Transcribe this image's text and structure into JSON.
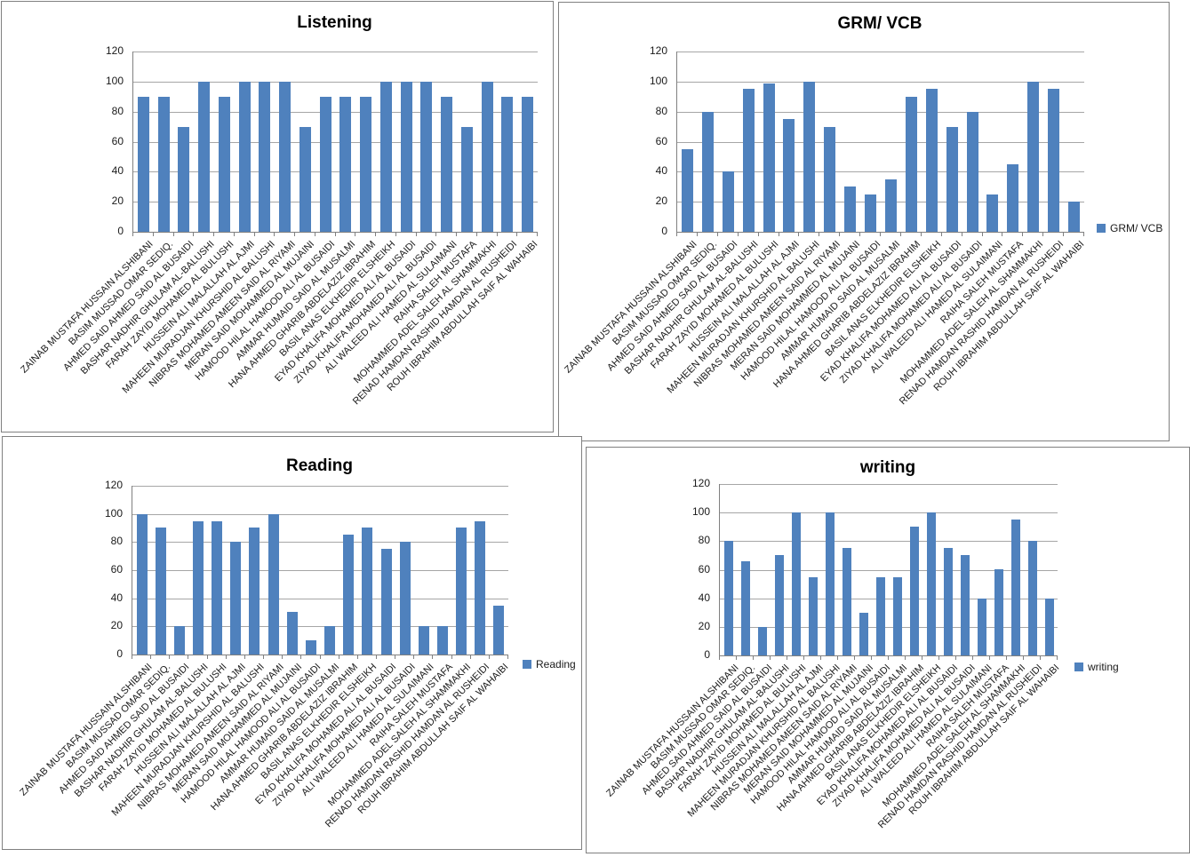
{
  "page": {
    "background": "#FFFFFF",
    "panel_border_color": "#808080"
  },
  "colors": {
    "bar": "#4F81BD",
    "gridline": "#A6A6A6",
    "axis": "#808080",
    "text": "#1A1A1A",
    "title": "#000000"
  },
  "chart_data": [
    {
      "type": "bar",
      "title": "Listening",
      "legend": null,
      "legend_position": null,
      "grid": true,
      "ylim": [
        0,
        120
      ],
      "yticks": [
        0,
        20,
        40,
        60,
        80,
        100,
        120
      ],
      "categories": [
        "ZAINAB MUSTAFA HUSSAIN ALSHIBANI",
        "BASIM MUSSAD OMAR SEDIQ.",
        "AHMED SAID AHMED SAID AL BUSAIDI",
        "BASHAR NADHIR GHULAM AL-BALUSHI",
        "FARAH ZAYID MOHAMED AL BULUSHI",
        "HUSSEIN ALI MALALLAH AL AJMI",
        "MAHEEN MURADJAN KHURSHID AL BALUSHI",
        "NIBRAS MOHAMED AMEEN SAID AL RIYAMI",
        "MERAN SAID MOHAMMED AL MUJAINI",
        "HAMOOD HILAL HAMOOD ALI AL BUSAIDI",
        "AMMAR HUMAID SAID AL MUSALMI",
        "HANA AHMED GHARIB ABDELAZIZ IBRAHIM",
        "BASIL ANAS ELKHEDIR ELSHEIKH",
        "EYAD KHALIFA MOHAMED ALI AL BUSAIDI",
        "ZIYAD KHALIFA MOHAMED ALI AL BUSAIDI",
        "ALI WALEED ALI HAMED AL SULAIMANI",
        "RAIHA SALEH MUSTAFA",
        "MOHAMMED ADEL SALEH AL SHAMMAKHI",
        "RENAD HAMDAN RASHID HAMDAN AL RUSHEIDI",
        "ROUH IBRAHIM ABDULLAH SAIF AL WAHAIBI"
      ],
      "series": [
        {
          "name": "Listening",
          "values": [
            90,
            90,
            70,
            100,
            90,
            100,
            100,
            100,
            70,
            90,
            90,
            90,
            100,
            100,
            100,
            90,
            70,
            100,
            90,
            90
          ]
        }
      ]
    },
    {
      "type": "bar",
      "title": "GRM/ VCB",
      "legend": "GRM/ VCB",
      "legend_position": "right",
      "grid": true,
      "ylim": [
        0,
        120
      ],
      "yticks": [
        0,
        20,
        40,
        60,
        80,
        100,
        120
      ],
      "categories": [
        "ZAINAB MUSTAFA HUSSAIN ALSHIBANI",
        "BASIM MUSSAD OMAR SEDIQ.",
        "AHMED SAID AHMED SAID AL BUSAIDI",
        "BASHAR NADHIR GHULAM AL-BALUSHI",
        "FARAH ZAYID MOHAMED AL BULUSHI",
        "HUSSEIN ALI MALALLAH AL AJMI",
        "MAHEEN MURADJAN KHURSHID AL BALUSHI",
        "NIBRAS MOHAMED AMEEN SAID AL RIYAMI",
        "MERAN SAID MOHAMMED AL MUJAINI",
        "HAMOOD HILAL HAMOOD ALI AL BUSAIDI",
        "AMMAR HUMAID SAID AL MUSALMI",
        "HANA AHMED GHARIB ABDELAZIZ IBRAHIM",
        "BASIL ANAS ELKHEDIR ELSHEIKH",
        "EYAD KHALIFA MOHAMED ALI AL BUSAIDI",
        "ZIYAD KHALIFA MOHAMED ALI AL BUSAIDI",
        "ALI WALEED ALI HAMED AL SULAIMANI",
        "RAIHA SALEH MUSTAFA",
        "MOHAMMED ADEL SALEH AL SHAMMAKHI",
        "RENAD HAMDAN RASHID HAMDAN AL RUSHEIDI",
        "ROUH IBRAHIM ABDULLAH SAIF AL WAHAIBI"
      ],
      "series": [
        {
          "name": "GRM/ VCB",
          "values": [
            55,
            80,
            40,
            95,
            99,
            75,
            100,
            70,
            30,
            25,
            35,
            90,
            95,
            70,
            80,
            25,
            45,
            100,
            95,
            20
          ]
        }
      ]
    },
    {
      "type": "bar",
      "title": "Reading",
      "legend": "Reading",
      "legend_position": "right",
      "grid": true,
      "ylim": [
        0,
        120
      ],
      "yticks": [
        0,
        20,
        40,
        60,
        80,
        100,
        120
      ],
      "categories": [
        "ZAINAB MUSTAFA HUSSAIN ALSHIBANI",
        "BASIM MUSSAD OMAR SEDIQ.",
        "AHMED SAID AHMED SAID AL BUSAIDI",
        "BASHAR NADHIR GHULAM AL-BALUSHI",
        "FARAH ZAYID MOHAMED AL BULUSHI",
        "HUSSEIN ALI MALALLAH AL AJMI",
        "MAHEEN MURADJAN KHURSHID AL BALUSHI",
        "NIBRAS MOHAMED AMEEN SAID AL RIYAMI",
        "MERAN SAID MOHAMMED AL MUJAINI",
        "HAMOOD HILAL HAMOOD ALI AL BUSAIDI",
        "AMMAR HUMAID SAID AL MUSALMI",
        "HANA AHMED GHARIB ABDELAZIZ IBRAHIM",
        "BASIL ANAS ELKHEDIR ELSHEIKH",
        "EYAD KHALIFA MOHAMED ALI AL BUSAIDI",
        "ZIYAD KHALIFA MOHAMED ALI AL BUSAIDI",
        "ALI WALEED ALI HAMED AL SULAIMANI",
        "RAIHA SALEH MUSTAFA",
        "MOHAMMED ADEL SALEH AL SHAMMAKHI",
        "RENAD HAMDAN RASHID HAMDAN AL RUSHEIDI",
        "ROUH IBRAHIM ABDULLAH SAIF AL WAHAIBI"
      ],
      "series": [
        {
          "name": "Reading",
          "values": [
            100,
            90,
            20,
            95,
            95,
            80,
            90,
            100,
            30,
            10,
            20,
            85,
            90,
            75,
            80,
            20,
            20,
            90,
            95,
            35
          ]
        }
      ]
    },
    {
      "type": "bar",
      "title": "writing",
      "legend": "writing",
      "legend_position": "right",
      "grid": true,
      "ylim": [
        0,
        120
      ],
      "yticks": [
        0,
        20,
        40,
        60,
        80,
        100,
        120
      ],
      "categories": [
        "ZAINAB MUSTAFA HUSSAIN ALSHIBANI",
        "BASIM MUSSAD OMAR SEDIQ.",
        "AHMED SAID AHMED SAID AL BUSAIDI",
        "BASHAR NADHIR GHULAM AL-BALUSHI",
        "FARAH ZAYID MOHAMED AL BULUSHI",
        "HUSSEIN ALI MALALLAH AL AJMI",
        "MAHEEN MURADJAN KHURSHID AL BALUSHI",
        "NIBRAS MOHAMED AMEEN SAID AL RIYAMI",
        "MERAN SAID MOHAMMED AL MUJAINI",
        "HAMOOD HILAL HAMOOD ALI AL BUSAIDI",
        "AMMAR HUMAID SAID AL MUSALMI",
        "HANA AHMED GHARIB ABDELAZIZ IBRAHIM",
        "BASIL ANAS ELKHEDIR ELSHEIKH",
        "EYAD KHALIFA MOHAMED ALI AL BUSAIDI",
        "ZIYAD KHALIFA MOHAMED ALI AL BUSAIDI",
        "ALI WALEED ALI HAMED AL SULAIMANI",
        "RAIHA SALEH MUSTAFA",
        "MOHAMMED ADEL SALEH AL SHAMMAKHI",
        "RENAD HAMDAN RASHID HAMDAN AL RUSHEIDI",
        "ROUH IBRAHIM ABDULLAH SAIF AL WAHAIBI"
      ],
      "series": [
        {
          "name": "writing",
          "values": [
            80,
            66,
            20,
            70,
            100,
            55,
            100,
            75,
            30,
            55,
            55,
            90,
            100,
            75,
            70,
            40,
            60,
            95,
            80,
            40
          ]
        }
      ]
    }
  ]
}
